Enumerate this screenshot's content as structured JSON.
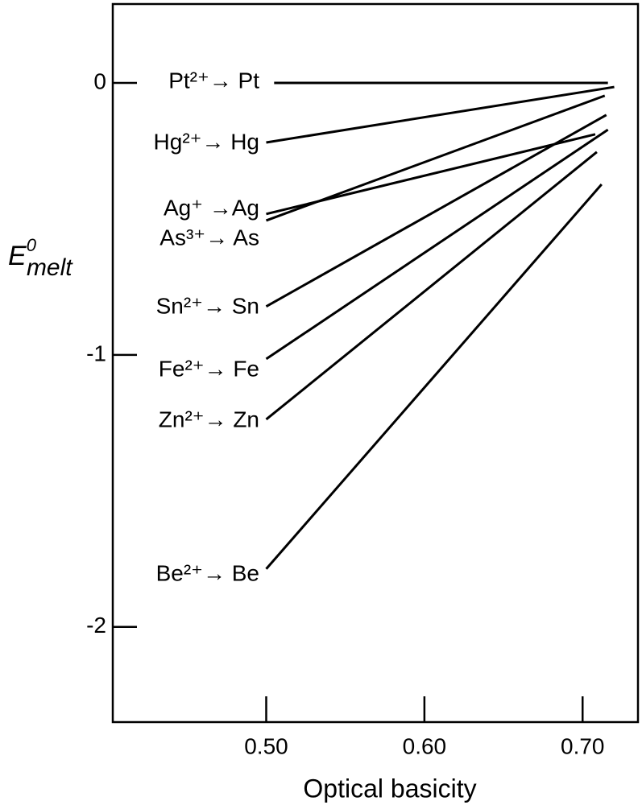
{
  "chart_data": {
    "type": "line",
    "ylabel": {
      "main": "E",
      "sup": "0",
      "sub": "melt"
    },
    "xlabel": "Optical basicity",
    "xlim": [
      0.403,
      0.735
    ],
    "ylim": [
      -2.35,
      0.29
    ],
    "xticks": [
      {
        "value": 0.5,
        "label": "0.50"
      },
      {
        "value": 0.6,
        "label": "0.60"
      },
      {
        "value": 0.7,
        "label": "0.70"
      }
    ],
    "yticks": [
      0,
      -1,
      -2
    ],
    "color": "#000000",
    "series": [
      {
        "name": "Pt²⁺→ Pt",
        "x": [
          0.505,
          0.716
        ],
        "values": [
          0,
          0
        ]
      },
      {
        "name": "Hg²⁺→ Hg",
        "x": [
          0.5,
          0.72
        ],
        "values": [
          -0.219,
          -0.015
        ]
      },
      {
        "name": "Ag⁺ →Ag",
        "x": [
          0.5,
          0.708
        ],
        "values": [
          -0.482,
          -0.189
        ]
      },
      {
        "name": "As³⁺→ As",
        "x": [
          0.5,
          0.714
        ],
        "values": [
          -0.506,
          -0.047
        ]
      },
      {
        "name": "Sn²⁺→ Sn",
        "x": [
          0.5,
          0.715
        ],
        "values": [
          -0.822,
          -0.118
        ]
      },
      {
        "name": "Fe²⁺→ Fe",
        "x": [
          0.5,
          0.716
        ],
        "values": [
          -1.015,
          -0.172
        ]
      },
      {
        "name": "Zn²⁺→ Zn",
        "x": [
          0.5,
          0.709
        ],
        "values": [
          -1.237,
          -0.254
        ]
      },
      {
        "name": "Be²⁺→ Be",
        "x": [
          0.5,
          0.712
        ],
        "values": [
          -1.787,
          -0.373
        ]
      }
    ]
  }
}
